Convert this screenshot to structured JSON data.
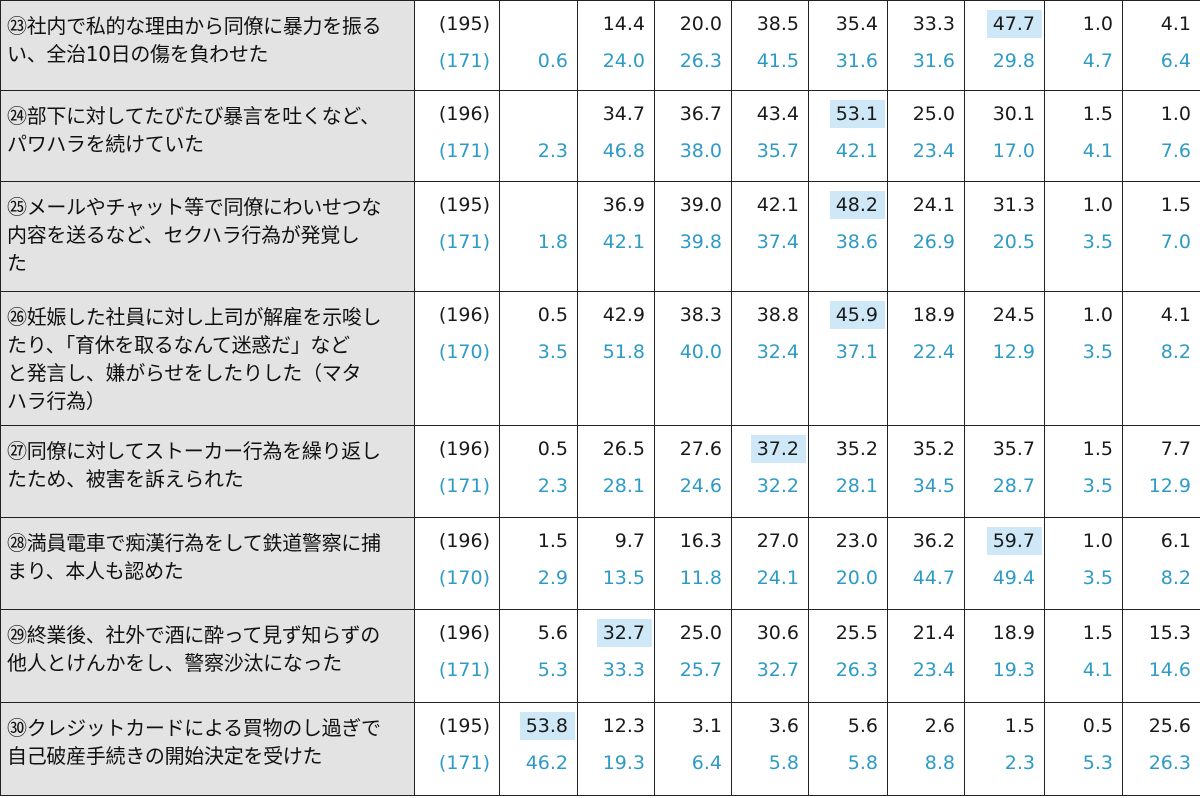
{
  "rows": [
    {
      "label": "㉓社内で私的な理由から同僚に暴力を振るい、全治10日の傷を負わせた",
      "lines": [
        "㉓社内で私的な理由から同僚に暴力を振る",
        "い、全治10日の傷を負わせた"
      ],
      "n_top": "(195)",
      "n_bottom": "(171)",
      "top": [
        "",
        "14.4",
        "20.0",
        "38.5",
        "35.4",
        "33.3",
        "47.7",
        "1.0",
        "4.1"
      ],
      "bottom": [
        "0.6",
        "24.0",
        "26.3",
        "41.5",
        "31.6",
        "31.6",
        "29.8",
        "4.7",
        "6.4"
      ],
      "highlight": 6
    },
    {
      "label": "㉔部下に対してたびたび暴言を吐くなど、パワハラを続けていた",
      "lines": [
        "㉔部下に対してたびたび暴言を吐くなど、",
        "パワハラを続けていた"
      ],
      "n_top": "(196)",
      "n_bottom": "(171)",
      "top": [
        "",
        "34.7",
        "36.7",
        "43.4",
        "53.1",
        "25.0",
        "30.1",
        "1.5",
        "1.0"
      ],
      "bottom": [
        "2.3",
        "46.8",
        "38.0",
        "35.7",
        "42.1",
        "23.4",
        "17.0",
        "4.1",
        "7.6"
      ],
      "highlight": 4
    },
    {
      "label": "㉕メールやチャット等で同僚にわいせつな内容を送るなど、セクハラ行為が発覚した",
      "lines": [
        "㉕メールやチャット等で同僚にわいせつな",
        "内容を送るなど、セクハラ行為が発覚し",
        "た"
      ],
      "n_top": "(195)",
      "n_bottom": "(171)",
      "top": [
        "",
        "36.9",
        "39.0",
        "42.1",
        "48.2",
        "24.1",
        "31.3",
        "1.0",
        "1.5"
      ],
      "bottom": [
        "1.8",
        "42.1",
        "39.8",
        "37.4",
        "38.6",
        "26.9",
        "20.5",
        "3.5",
        "7.0"
      ],
      "highlight": 4
    },
    {
      "label": "㉖妊娠した社員に対し上司が解雇を示唆したり、「育休を取るなんて迷惑だ」などと発言し、嫌がらせをしたりした（マタハラ行為）",
      "lines": [
        "㉖妊娠した社員に対し上司が解雇を示唆し",
        "たり、「育休を取るなんて迷惑だ」など",
        "と発言し、嫌がらせをしたりした（マタ",
        "ハラ行為）"
      ],
      "n_top": "(196)",
      "n_bottom": "(170)",
      "top": [
        "0.5",
        "42.9",
        "38.3",
        "38.8",
        "45.9",
        "18.9",
        "24.5",
        "1.0",
        "4.1"
      ],
      "bottom": [
        "3.5",
        "51.8",
        "40.0",
        "32.4",
        "37.1",
        "22.4",
        "12.9",
        "3.5",
        "8.2"
      ],
      "highlight": 4
    },
    {
      "label": "㉗同僚に対してストーカー行為を繰り返したため、被害を訴えられた",
      "lines": [
        "㉗同僚に対してストーカー行為を繰り返し",
        "たため、被害を訴えられた"
      ],
      "n_top": "(196)",
      "n_bottom": "(171)",
      "top": [
        "0.5",
        "26.5",
        "27.6",
        "37.2",
        "35.2",
        "35.2",
        "35.7",
        "1.5",
        "7.7"
      ],
      "bottom": [
        "2.3",
        "28.1",
        "24.6",
        "32.2",
        "28.1",
        "34.5",
        "28.7",
        "3.5",
        "12.9"
      ],
      "highlight": 3
    },
    {
      "label": "㉘満員電車で痴漢行為をして鉄道警察に捕まり、本人も認めた",
      "lines": [
        "㉘満員電車で痴漢行為をして鉄道警察に捕",
        "まり、本人も認めた"
      ],
      "n_top": "(196)",
      "n_bottom": "(170)",
      "top": [
        "1.5",
        "9.7",
        "16.3",
        "27.0",
        "23.0",
        "36.2",
        "59.7",
        "1.0",
        "6.1"
      ],
      "bottom": [
        "2.9",
        "13.5",
        "11.8",
        "24.1",
        "20.0",
        "44.7",
        "49.4",
        "3.5",
        "8.2"
      ],
      "highlight": 6
    },
    {
      "label": "㉙終業後、社外で酒に酔って見ず知らずの他人とけんかをし、警察沙汰になった",
      "lines": [
        "㉙終業後、社外で酒に酔って見ず知らずの",
        "他人とけんかをし、警察沙汰になった"
      ],
      "n_top": "(196)",
      "n_bottom": "(171)",
      "top": [
        "5.6",
        "32.7",
        "25.0",
        "30.6",
        "25.5",
        "21.4",
        "18.9",
        "1.5",
        "15.3"
      ],
      "bottom": [
        "5.3",
        "33.3",
        "25.7",
        "32.7",
        "26.3",
        "23.4",
        "19.3",
        "4.1",
        "14.6"
      ],
      "highlight": 1
    },
    {
      "label": "㉚クレジットカードによる買物のし過ぎで自己破産手続きの開始決定を受けた",
      "lines": [
        "㉚クレジットカードによる買物のし過ぎで",
        "自己破産手続きの開始決定を受けた"
      ],
      "n_top": "(195)",
      "n_bottom": "(171)",
      "top": [
        "53.8",
        "12.3",
        "3.1",
        "3.6",
        "5.6",
        "2.6",
        "1.5",
        "0.5",
        "25.6"
      ],
      "bottom": [
        "46.2",
        "19.3",
        "6.4",
        "5.8",
        "5.8",
        "8.8",
        "2.3",
        "5.3",
        "26.3"
      ],
      "highlight": 0
    }
  ],
  "colors": {
    "top_text": "#1a1a1a",
    "bottom_text": "#2e9bc6",
    "highlight_bg": "#cfe8f8",
    "label_bg": "#e3e3e3"
  }
}
